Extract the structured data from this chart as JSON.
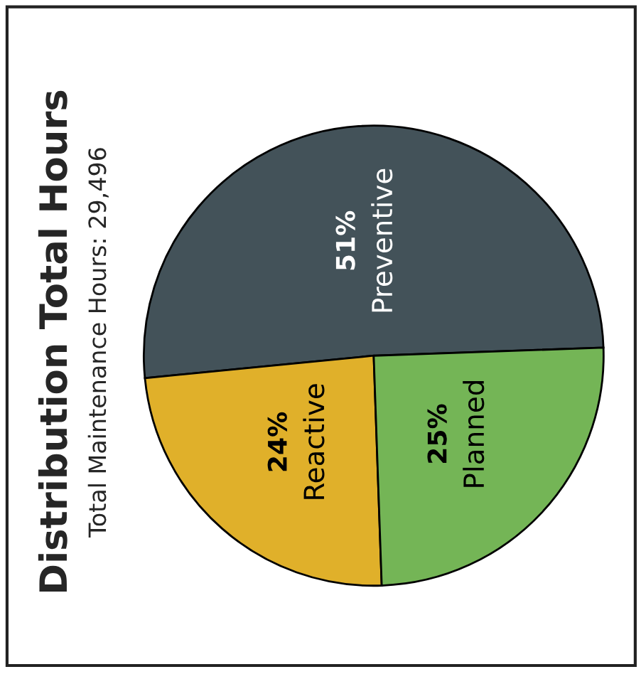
{
  "chart_data": {
    "type": "pie",
    "title": "Distribution Total Hours",
    "subtitle": "Total Maintenance Hours: 29,496",
    "categories": [
      "Preventive",
      "Reactive",
      "Planned"
    ],
    "values": [
      51,
      24,
      25
    ],
    "value_labels": [
      "51%",
      "24%",
      "25%"
    ],
    "colors": [
      "#435259",
      "#e0b02a",
      "#74b556"
    ],
    "legend": false
  }
}
